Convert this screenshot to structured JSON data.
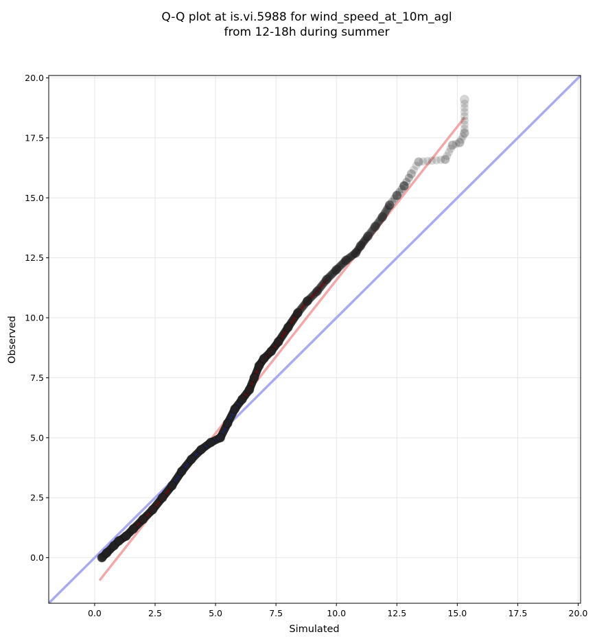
{
  "chart_data": {
    "type": "scatter",
    "title_line1": "Q-Q plot at is.vi.5988 for wind_speed_at_10m_agl",
    "title_line2": "from 12-18h during summer",
    "xlabel": "Simulated",
    "ylabel": "Observed",
    "xlim": [
      -1.9,
      20.1
    ],
    "ylim": [
      -1.9,
      20.1
    ],
    "xticks": [
      "0.0",
      "2.5",
      "5.0",
      "7.5",
      "10.0",
      "12.5",
      "15.0",
      "17.5",
      "20.0"
    ],
    "yticks": [
      "0.0",
      "2.5",
      "5.0",
      "7.5",
      "10.0",
      "12.5",
      "15.0",
      "17.5",
      "20.0"
    ],
    "grid": true,
    "colors": {
      "points": "#222222",
      "identity_line": "#a8aaf2",
      "fit_line": "#f2a8a8",
      "density_blue": "#1a237e",
      "density_red": "#8b0000"
    },
    "identity_line": {
      "x": [
        -1.9,
        20.1
      ],
      "y": [
        -1.9,
        20.1
      ]
    },
    "fit_line": {
      "x": [
        0.2,
        15.3
      ],
      "y": [
        -0.95,
        18.35
      ]
    },
    "quantiles": {
      "x": [
        0.3,
        0.5,
        0.8,
        1.0,
        1.3,
        1.6,
        2.0,
        2.4,
        2.8,
        3.2,
        3.6,
        4.0,
        4.4,
        4.8,
        5.2,
        5.5,
        5.8,
        6.1,
        6.4,
        6.6,
        6.8,
        7.0,
        7.3,
        7.6,
        8.0,
        8.4,
        8.8,
        9.2,
        9.6,
        10.0,
        10.4,
        10.8,
        11.0,
        11.3,
        11.6,
        11.9,
        12.2,
        12.5,
        12.8,
        13.1,
        13.4,
        14.5,
        14.8,
        15.1,
        15.3,
        15.3
      ],
      "y": [
        0.0,
        0.2,
        0.5,
        0.7,
        0.9,
        1.2,
        1.6,
        2.0,
        2.5,
        3.0,
        3.6,
        4.1,
        4.5,
        4.8,
        5.0,
        5.6,
        6.2,
        6.6,
        7.0,
        7.5,
        8.0,
        8.3,
        8.6,
        9.0,
        9.6,
        10.2,
        10.7,
        11.1,
        11.6,
        12.0,
        12.4,
        12.7,
        13.0,
        13.4,
        13.8,
        14.2,
        14.7,
        15.1,
        15.5,
        16.0,
        16.5,
        16.6,
        17.2,
        17.3,
        17.7,
        19.1
      ]
    }
  }
}
